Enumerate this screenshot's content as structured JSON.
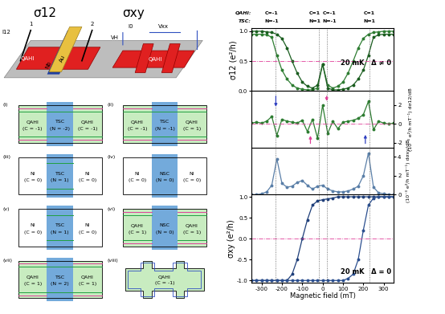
{
  "schematic": {
    "titles": [
      "σ12",
      "σxy"
    ],
    "current_left": "I12",
    "contacts": [
      "1",
      "2"
    ],
    "metal_top": "Au",
    "metal_bottom": "Nb",
    "region_labels": [
      "QAHI",
      "QAHI"
    ],
    "current_right": "I0",
    "v_long": "Vxx",
    "v_hall": "VH"
  },
  "panels": [
    {
      "label": "(i)",
      "left": {
        "name": "QAHI",
        "sub": "(C = -1)"
      },
      "center": {
        "name": "TSC",
        "sub": "(N = -2)"
      },
      "right": {
        "name": "QAHI",
        "sub": "(C = -1)"
      }
    },
    {
      "label": "(ii)",
      "left": {
        "name": "QAHI",
        "sub": "(C = -1)"
      },
      "center": {
        "name": "TSC",
        "sub": "(N = -1)"
      },
      "right": {
        "name": "QAHI",
        "sub": "(C = 1)"
      }
    },
    {
      "label": "(iii)",
      "left": {
        "name": "NI",
        "sub": "(C = 0)"
      },
      "center": {
        "name": "TSC",
        "sub": "(N = 1)"
      },
      "right": {
        "name": "NI",
        "sub": "(C = 0)"
      }
    },
    {
      "label": "(iv)",
      "left": {
        "name": "NI",
        "sub": "(C = 0)"
      },
      "center": {
        "name": "NSC",
        "sub": "(N = 0)"
      },
      "right": {
        "name": "NI",
        "sub": "(C = 0)"
      }
    },
    {
      "label": "(v)",
      "left": {
        "name": "NI",
        "sub": "(C = 0)"
      },
      "center": {
        "name": "TSC",
        "sub": "(N = 1)"
      },
      "right": {
        "name": "NI",
        "sub": "(C = 0)"
      }
    },
    {
      "label": "(vi)",
      "left": {
        "name": "QAHI",
        "sub": "(C = 1)"
      },
      "center": {
        "name": "NSC",
        "sub": "(N = 0)"
      },
      "right": {
        "name": "QAHI",
        "sub": "(C = 1)"
      }
    },
    {
      "label": "(vii)",
      "left": {
        "name": "QAHI",
        "sub": "(C = 1)"
      },
      "center": {
        "name": "TSC",
        "sub": "(N = 2)"
      },
      "right": {
        "name": "QAHI",
        "sub": "(C = 1)"
      }
    },
    {
      "label": "(viii)",
      "center": {
        "name": "QAHI",
        "sub": "(C = -1)"
      }
    }
  ],
  "header": {
    "row_labels": [
      "QAHI:",
      "TSC:"
    ],
    "columns": [
      {
        "x": -250,
        "labels": [
          "C=-1",
          "N=-1"
        ]
      },
      {
        "x": -40,
        "labels": [
          "C=1",
          "N=1"
        ]
      },
      {
        "x": 35,
        "labels": [
          "C=-1",
          "N=-1"
        ]
      },
      {
        "x": 230,
        "labels": [
          "C=1",
          "N=1"
        ]
      }
    ]
  },
  "chart_data": [
    {
      "type": "line",
      "y_label": "σ12 (e²/h)",
      "annotation": "20 mK   Δ ≠ 0",
      "tick_labels": "y",
      "x": [
        -350,
        -325,
        -300,
        -275,
        -250,
        -225,
        -200,
        -175,
        -150,
        -125,
        -100,
        -75,
        -50,
        -25,
        0,
        25,
        50,
        75,
        100,
        125,
        150,
        175,
        200,
        225,
        250,
        275,
        300,
        325,
        350
      ],
      "xlim": [
        -350,
        350
      ],
      "xticks": [
        -300,
        -200,
        -100,
        0,
        100,
        200,
        300
      ],
      "ylim": [
        0,
        1.05
      ],
      "yticks": [
        {
          "value": 0,
          "label": "0.0"
        },
        {
          "value": 0.5,
          "label": "0.5"
        },
        {
          "value": 1,
          "label": "1.0"
        }
      ],
      "hline": 0.5,
      "vlines": [
        -230,
        -20,
        20,
        230
      ],
      "series": [
        {
          "color": "#2e7d32",
          "marker": "o",
          "line_style": "solid",
          "values": [
            0.95,
            0.95,
            0.95,
            0.94,
            0.9,
            0.6,
            0.35,
            0.2,
            0.1,
            0.05,
            0.03,
            0.02,
            0.02,
            0.05,
            0.45,
            0.1,
            0.05,
            0.08,
            0.15,
            0.3,
            0.5,
            0.72,
            0.88,
            0.95,
            0.98,
            0.99,
            1.0,
            1.0,
            1.0
          ]
        },
        {
          "color": "#1b5e20",
          "marker": "o",
          "line_style": "solid",
          "values": [
            1.0,
            1.0,
            1.0,
            0.99,
            0.98,
            0.95,
            0.88,
            0.72,
            0.5,
            0.3,
            0.15,
            0.08,
            0.05,
            0.1,
            0.45,
            0.05,
            0.02,
            0.02,
            0.03,
            0.05,
            0.1,
            0.2,
            0.35,
            0.6,
            0.9,
            0.94,
            0.95,
            0.95,
            0.95
          ]
        }
      ]
    },
    {
      "type": "scatter",
      "y_label": "(10⁻³ e²/h mT⁻¹) dσ12/dB",
      "tick_labels": "y",
      "x": [
        -350,
        -325,
        -300,
        -275,
        -250,
        -225,
        -200,
        -175,
        -150,
        -125,
        -100,
        -75,
        -50,
        -25,
        0,
        25,
        50,
        75,
        100,
        125,
        150,
        175,
        200,
        225,
        250,
        275,
        300,
        325,
        350
      ],
      "xlim": [
        -350,
        350
      ],
      "xticks": [
        -300,
        -200,
        -100,
        0,
        100,
        200,
        300
      ],
      "y2lim": [
        -2.5,
        3.5
      ],
      "y2ticks": [
        -2,
        0,
        2
      ],
      "hline": 0,
      "vlines": [
        -230,
        -20,
        20,
        230
      ],
      "arrows": [
        {
          "x": -230,
          "y_from": 3.2,
          "y_to": 1.6,
          "color": "#3040c0"
        },
        {
          "x": -60,
          "y_from": -2.3,
          "y_to": -1.0,
          "color": "#e0409a"
        },
        {
          "x": 20,
          "y_from": 3.2,
          "y_to": 2.2,
          "color": "#e0409a"
        },
        {
          "x": 210,
          "y_from": -2.3,
          "y_to": -0.9,
          "color": "#3040c0"
        }
      ],
      "series": [
        {
          "axis": "y2",
          "color": "#2e7d32",
          "marker": "o",
          "line_style": "solid",
          "values": [
            0.1,
            0.2,
            0.1,
            0.3,
            0.8,
            -1.2,
            0.5,
            0.3,
            0.2,
            0.1,
            0.4,
            -0.8,
            0.5,
            -1.5,
            2.0,
            -1.0,
            0.3,
            -0.5,
            0.2,
            0.3,
            0.4,
            0.6,
            1.0,
            2.4,
            -0.6,
            0.3,
            0.1,
            0.0,
            0.1
          ]
        }
      ]
    },
    {
      "type": "scatter",
      "y_label": "(10⁻³ e²/h mT⁻¹) dσxy/dB",
      "tick_labels": "y",
      "x": [
        -350,
        -325,
        -300,
        -275,
        -250,
        -225,
        -200,
        -175,
        -150,
        -125,
        -100,
        -75,
        -50,
        -25,
        0,
        25,
        50,
        75,
        100,
        125,
        150,
        175,
        200,
        225,
        250,
        275,
        300,
        325,
        350
      ],
      "xlim": [
        -350,
        350
      ],
      "xticks": [
        -300,
        -200,
        -100,
        0,
        100,
        200,
        300
      ],
      "y2lim": [
        0,
        5
      ],
      "y2ticks": [
        0,
        2,
        4
      ],
      "vlines": [
        -230,
        -20,
        20,
        230
      ],
      "series": [
        {
          "axis": "y2",
          "color": "#5a7fa8",
          "marker": "o",
          "line_style": "solid",
          "values": [
            0,
            0,
            0.1,
            0.3,
            1.0,
            3.8,
            1.2,
            0.8,
            0.9,
            1.3,
            1.5,
            1.0,
            0.6,
            0.9,
            1.0,
            0.6,
            0.4,
            0.3,
            0.3,
            0.4,
            0.6,
            0.9,
            2.0,
            4.4,
            0.8,
            0.2,
            0.1,
            0,
            0
          ]
        }
      ]
    },
    {
      "type": "line",
      "x_label": "Magnetic field (mT)",
      "y_label": "σxy (e²/h)",
      "annotation": "20 mK   Δ = 0",
      "x": [
        -350,
        -325,
        -300,
        -275,
        -250,
        -225,
        -200,
        -175,
        -150,
        -125,
        -100,
        -75,
        -50,
        -25,
        0,
        25,
        50,
        75,
        100,
        125,
        150,
        175,
        200,
        225,
        250,
        275,
        300,
        325,
        350
      ],
      "xlim": [
        -350,
        350
      ],
      "xticks": [
        -300,
        -200,
        -100,
        0,
        100,
        200,
        300
      ],
      "ylim": [
        -1.05,
        1.05
      ],
      "yticks": [
        {
          "value": -1,
          "label": "-1.0"
        },
        {
          "value": -0.5,
          "label": "-0.5"
        },
        {
          "value": 0,
          "label": "0.0"
        },
        {
          "value": 0.5,
          "label": "0.5"
        },
        {
          "value": 1,
          "label": "1.0"
        }
      ],
      "hline": 0,
      "vlines": [
        -230,
        -20,
        20,
        230
      ],
      "series": [
        {
          "color": "#1f3f7a",
          "marker": "o",
          "line_style": "solid",
          "values": [
            -1,
            -1,
            -1,
            -1,
            -1,
            -1,
            -1,
            -1,
            -0.85,
            -0.5,
            0.0,
            0.45,
            0.8,
            0.9,
            0.93,
            0.95,
            0.97,
            1,
            1,
            1,
            1,
            1,
            1,
            1,
            1,
            1,
            1,
            1,
            1
          ]
        },
        {
          "color": "#2b4f8f",
          "marker": "o",
          "line_style": "solid",
          "values": [
            -1,
            -1,
            -1,
            -1,
            -1,
            -1,
            -1,
            -1,
            -1,
            -1,
            -1,
            -1,
            -1,
            -1,
            -1,
            -1,
            -1,
            -1,
            -1,
            -0.95,
            -0.85,
            -0.5,
            0.2,
            0.8,
            0.97,
            1,
            1,
            1,
            1
          ]
        }
      ]
    }
  ]
}
